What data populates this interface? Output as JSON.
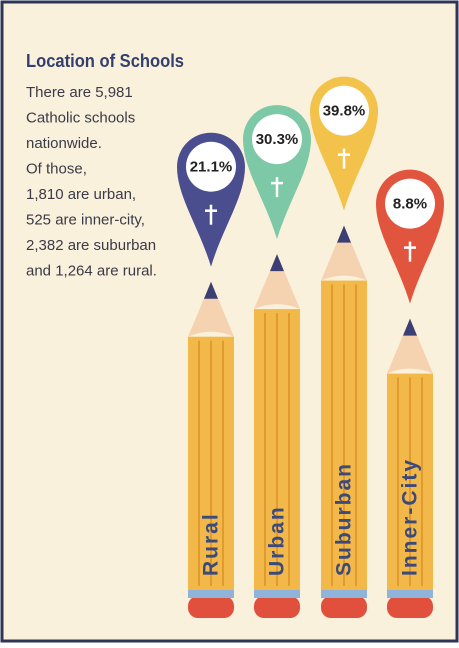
{
  "chart_data": {
    "type": "pencil",
    "title": "Location of Schools",
    "annotation": [
      "There are 5,981",
      "Catholic schools",
      "nationwide.",
      "Of those,",
      "1,810 are urban,",
      "525 are inner-city,",
      "2,382 are suburban",
      "and 1,264 are rural."
    ],
    "categories": [
      "Rural",
      "Urban",
      "Suburban",
      "Inner-City"
    ],
    "values": [
      21.1,
      30.3,
      39.8,
      8.8
    ],
    "value_labels": [
      "21.1%",
      "30.3%",
      "39.8%",
      "8.8%"
    ],
    "colors": [
      "#4a4e8f",
      "#7dc8a6",
      "#f3c24a",
      "#e1553f"
    ]
  }
}
